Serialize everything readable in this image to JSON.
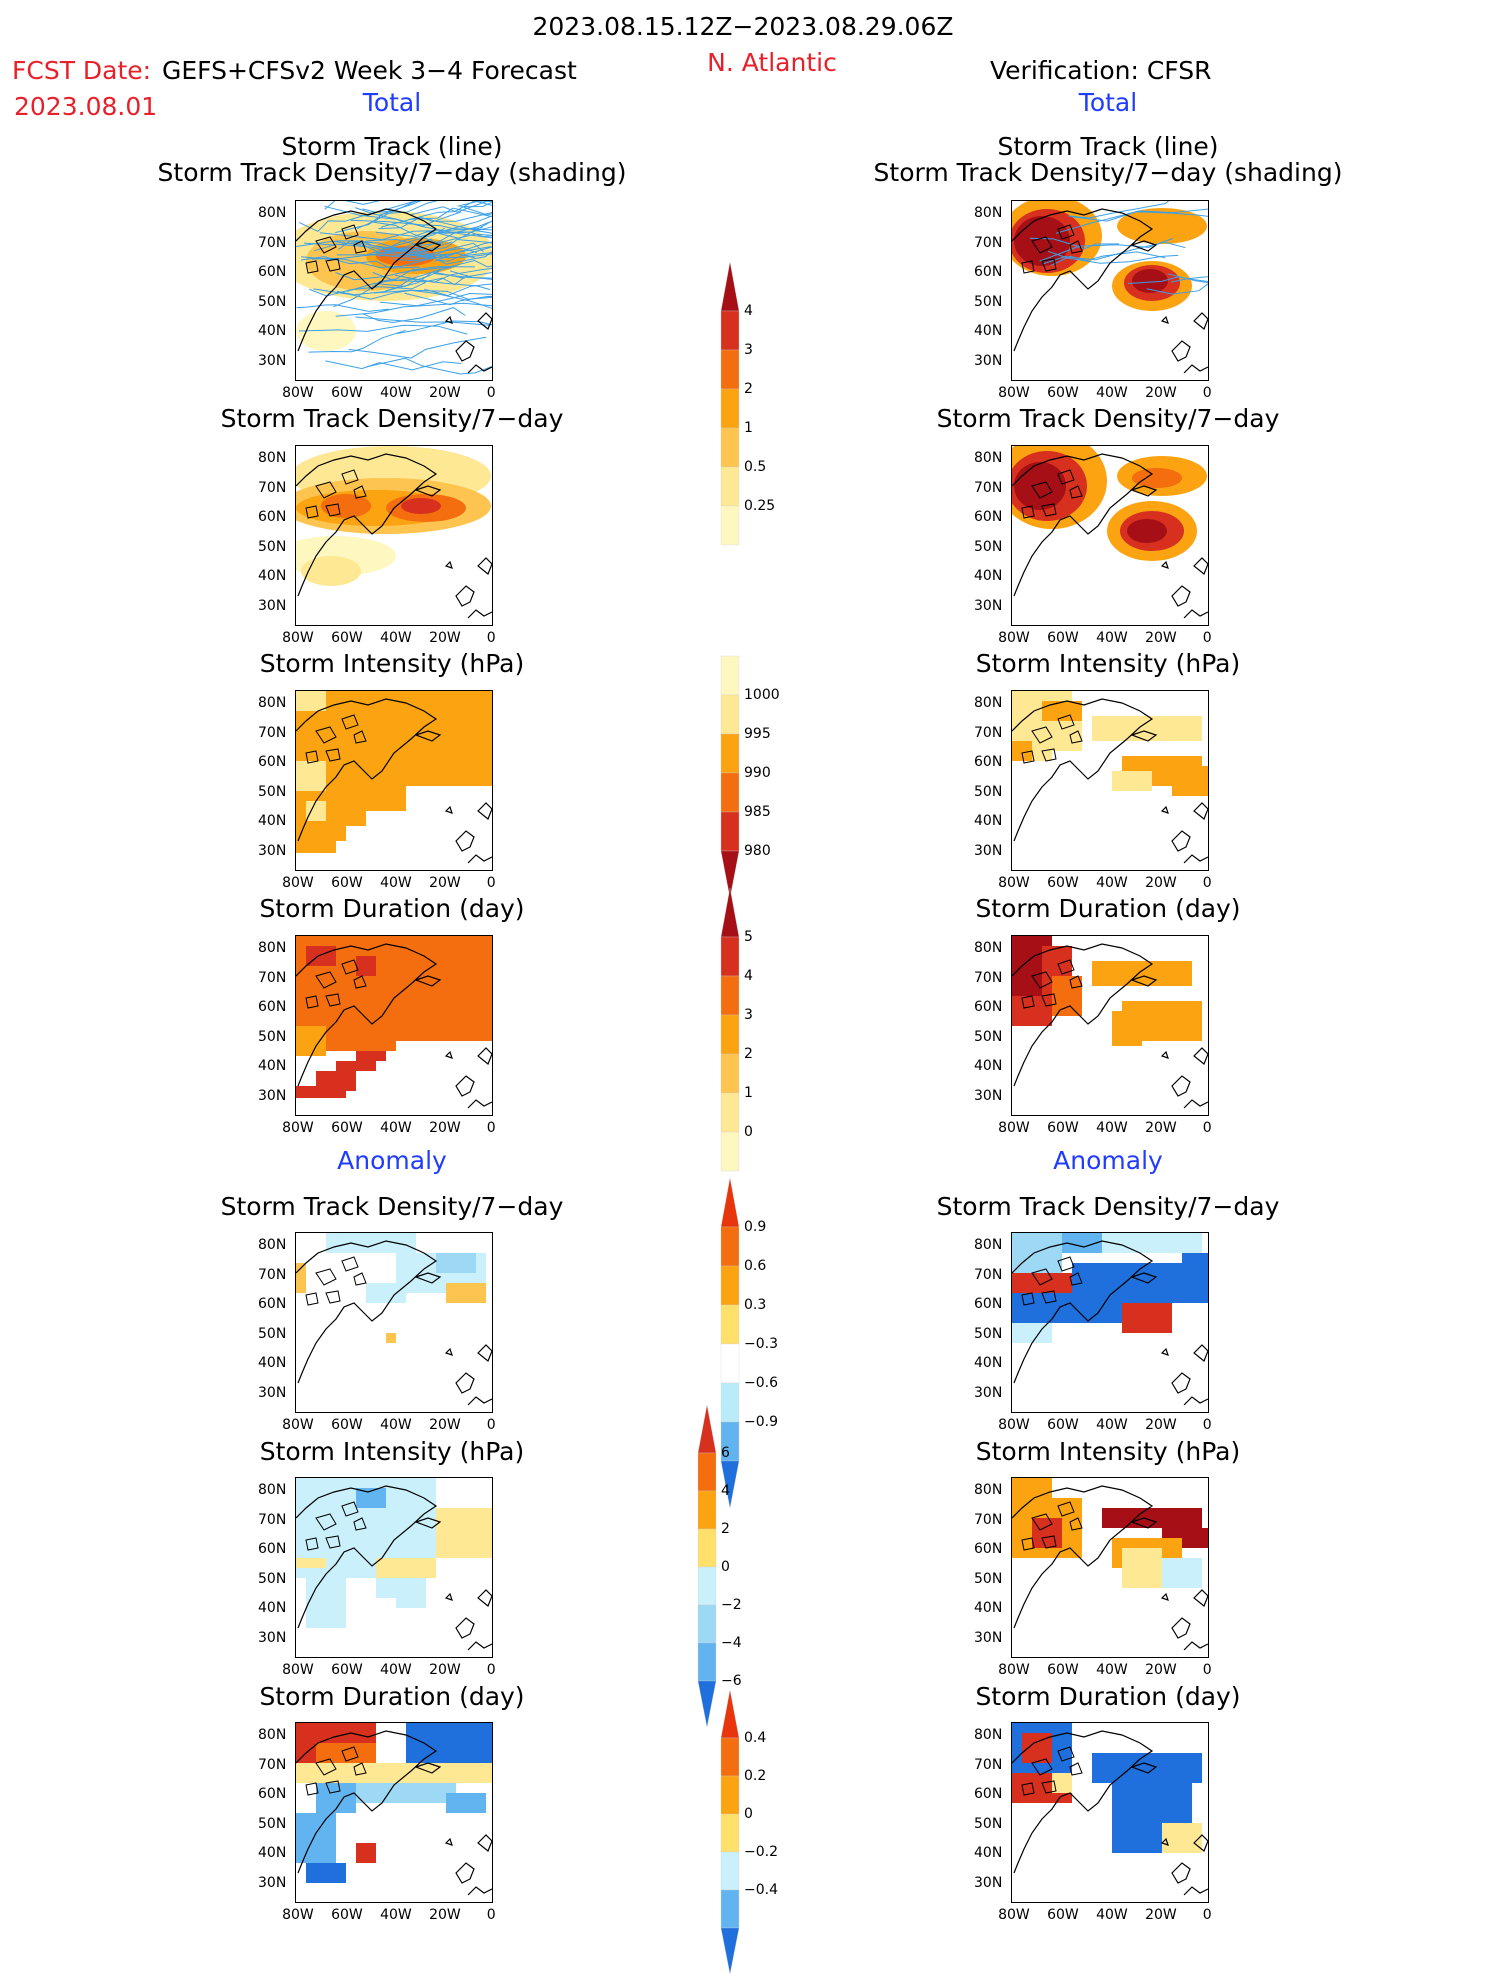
{
  "header": {
    "period": "2023.08.15.12Z−2023.08.29.06Z",
    "fcst_label": "FCST Date:",
    "fcst_model": "GEFS+CFSv2 Week 3−4 Forecast",
    "fcst_date": "2023.08.01",
    "region": "N. Atlantic",
    "verification": "Verification: CFSR",
    "left_total": "Total",
    "right_total": "Total",
    "left_anomaly": "Anomaly",
    "right_anomaly": "Anomaly"
  },
  "panel_titles": {
    "track_line": "Storm Track (line)",
    "track_shading": "Storm Track Density/7−day (shading)",
    "density": "Storm Track Density/7−day",
    "intensity": "Storm Intensity (hPa)",
    "duration": "Storm Duration (day)"
  },
  "axes": {
    "lat_labels": [
      "80N",
      "70N",
      "60N",
      "50N",
      "40N",
      "30N"
    ],
    "lon_labels": [
      "80W",
      "60W",
      "40W",
      "20W",
      "0"
    ]
  },
  "colorbars": {
    "density_total": {
      "labels": [
        "4",
        "3",
        "2",
        "1",
        "0.5",
        "0.25"
      ],
      "colors": [
        "#a50f15",
        "#d7301f",
        "#f46d0e",
        "#fca311",
        "#fdc44f",
        "#fee894",
        "#fff7c0"
      ]
    },
    "intensity_total": {
      "labels": [
        "1000",
        "995",
        "990",
        "985",
        "980"
      ],
      "colors": [
        "#fff7c0",
        "#fee894",
        "#fca311",
        "#f46d0e",
        "#d7301f",
        "#a50f15"
      ]
    },
    "duration_total": {
      "labels": [
        "5",
        "4",
        "3",
        "2",
        "1",
        "0"
      ],
      "colors": [
        "#a50f15",
        "#d7301f",
        "#f46d0e",
        "#fca311",
        "#fdc44f",
        "#fee894",
        "#fff7c0"
      ]
    },
    "density_anom": {
      "labels": [
        "0.9",
        "0.6",
        "0.3",
        "−0.3",
        "−0.6",
        "−0.9"
      ],
      "colors": [
        "#e8350e",
        "#f46d0e",
        "#fca311",
        "#fee06a",
        "#ffffff",
        "#b9ecf8",
        "#62b4f0",
        "#1f6fdc"
      ]
    },
    "intensity_anom": {
      "labels": [
        "6",
        "4",
        "2",
        "0",
        "−2",
        "−4",
        "−6"
      ],
      "colors": [
        "#d7301f",
        "#f46d0e",
        "#fca311",
        "#fee06a",
        "#c9f0fb",
        "#9dd8f5",
        "#62b4f0",
        "#1f6fdc"
      ]
    },
    "duration_anom": {
      "labels": [
        "0.4",
        "0.2",
        "0",
        "−0.2",
        "−0.4"
      ],
      "colors": [
        "#e8350e",
        "#f46d0e",
        "#fca311",
        "#fee06a",
        "#c9f0fb",
        "#62b4f0",
        "#1f6fdc"
      ]
    }
  },
  "palette": {
    "y1": "#fff7c0",
    "y2": "#fee894",
    "y3": "#fdc44f",
    "o1": "#fca311",
    "o2": "#f46d0e",
    "r1": "#d7301f",
    "r2": "#a50f15",
    "b1": "#c9f0fb",
    "b2": "#9dd8f5",
    "b3": "#62b4f0",
    "b4": "#1f6fdc",
    "track": "#3aa0e8"
  }
}
